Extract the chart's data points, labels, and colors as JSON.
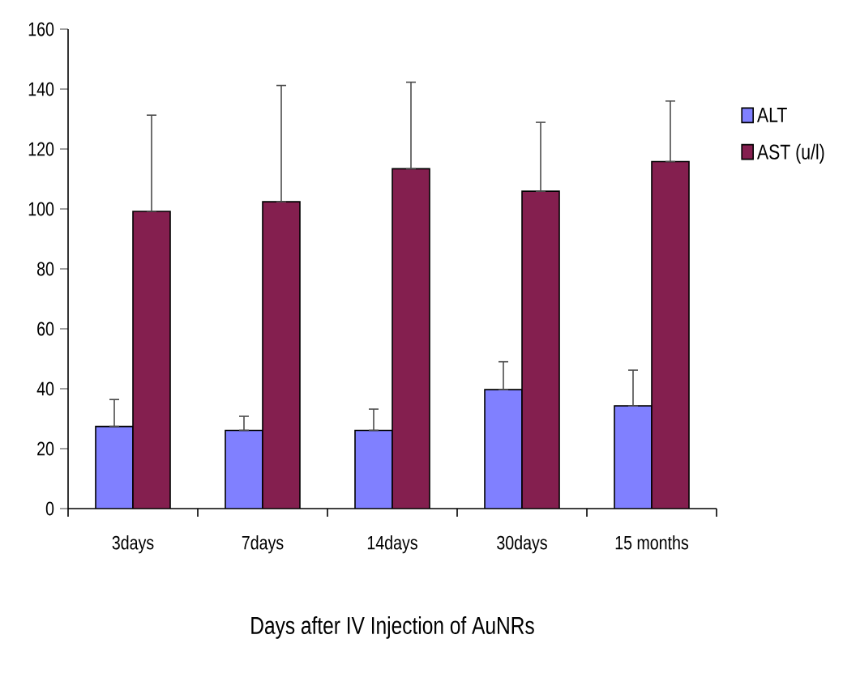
{
  "chart_data": {
    "type": "bar",
    "xlabel": "Days after IV Injection of AuNRs",
    "categories": [
      "3days",
      "7days",
      "14days",
      "30days",
      "15 months"
    ],
    "series": [
      {
        "name": "ALT",
        "color": "#8080ff",
        "values": [
          27.4,
          26.1,
          26.1,
          39.7,
          34.3
        ],
        "errors": [
          [
            27.4,
            36.4
          ],
          [
            26.1,
            30.8
          ],
          [
            26.1,
            33.2
          ],
          [
            39.7,
            49
          ],
          [
            34.3,
            46.2
          ]
        ]
      },
      {
        "name": "AST (u/l)",
        "color": "#841f4f",
        "values": [
          99.2,
          102.4,
          113.4,
          105.9,
          115.8
        ],
        "errors": [
          [
            99.2,
            131.3
          ],
          [
            102.4,
            141.2
          ],
          [
            113.4,
            142.3
          ],
          [
            105.9,
            128.9
          ],
          [
            115.8,
            136
          ]
        ]
      }
    ],
    "ylim": [
      0,
      160
    ],
    "yticks": [
      0,
      20,
      40,
      60,
      80,
      100,
      120,
      140,
      160
    ],
    "legend": "right",
    "grid": false
  }
}
